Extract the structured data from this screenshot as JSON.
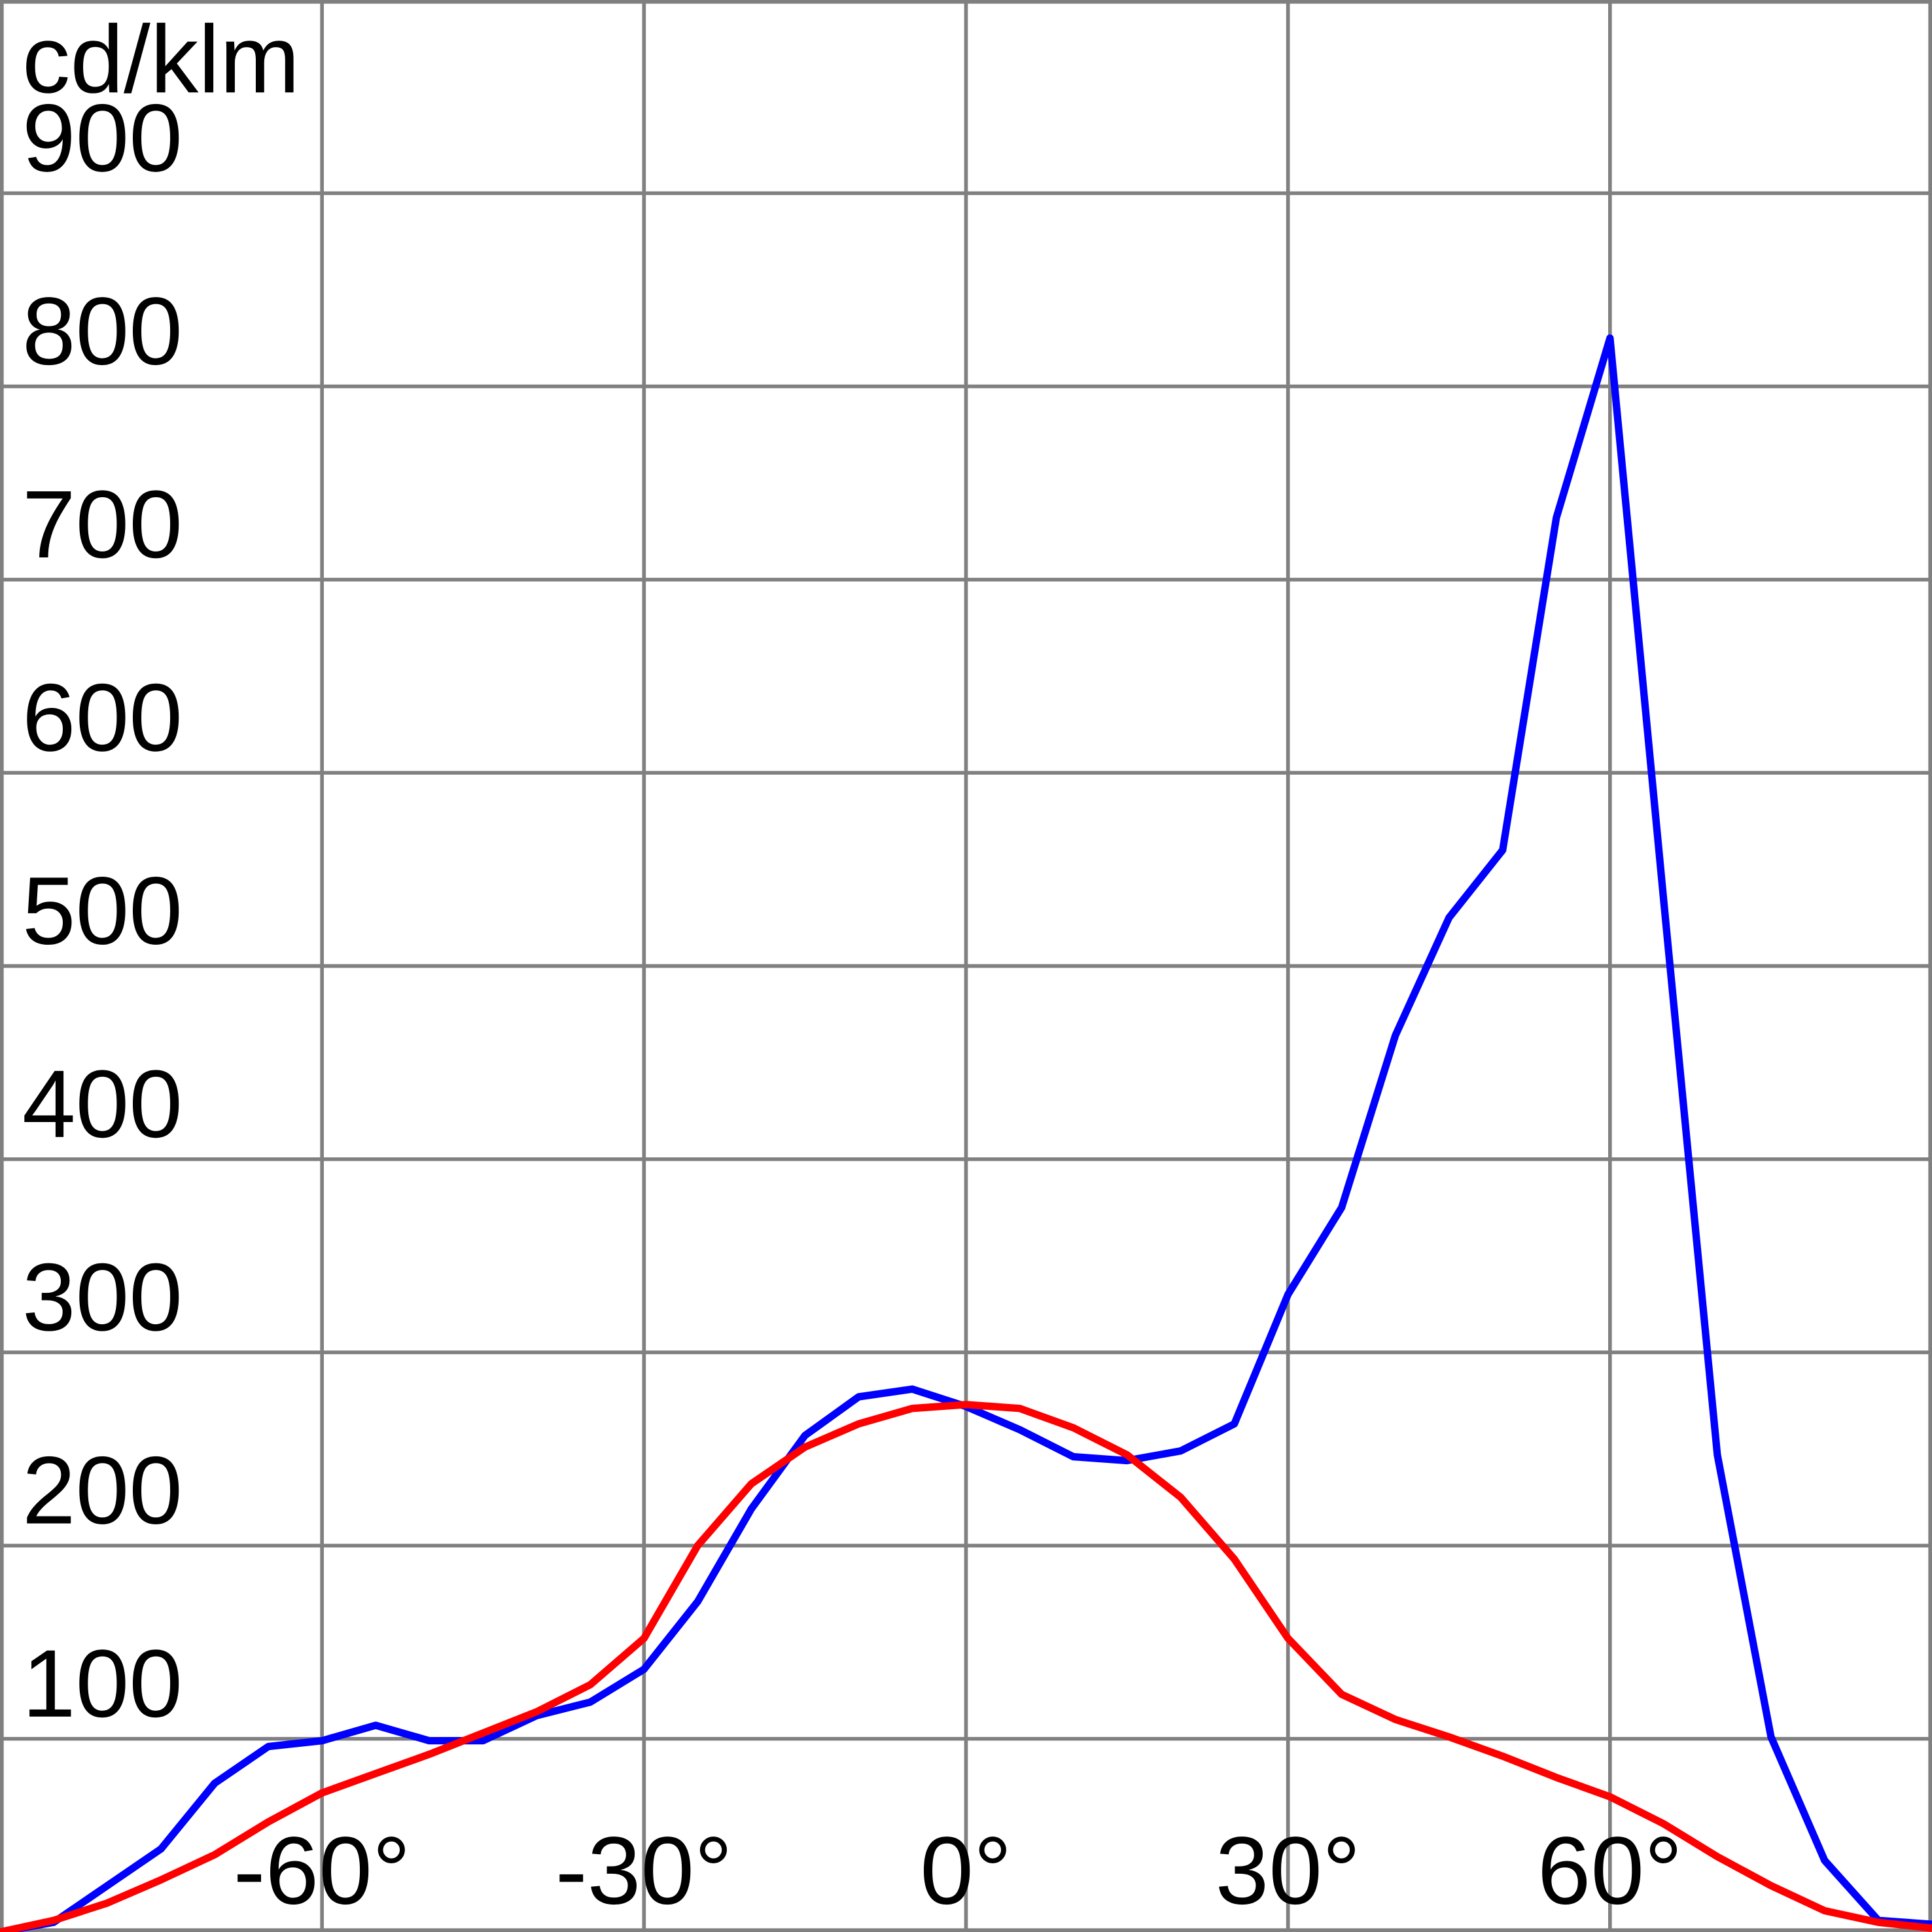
{
  "chart_data": {
    "type": "line",
    "y_label": "cd/klm",
    "x": [
      -90,
      -85,
      -80,
      -75,
      -70,
      -65,
      -60,
      -55,
      -50,
      -45,
      -40,
      -35,
      -30,
      -25,
      -20,
      -15,
      -10,
      -5,
      0,
      5,
      10,
      15,
      20,
      25,
      30,
      35,
      40,
      45,
      50,
      55,
      60,
      65,
      70,
      75,
      80,
      85,
      90
    ],
    "series": [
      {
        "color": "#0000ff",
        "values": [
          0,
          5,
          24,
          43,
          77,
          96,
          99,
          107,
          99,
          99,
          112,
          119,
          136,
          171,
          219,
          257,
          277,
          281,
          272,
          260,
          246,
          244,
          249,
          263,
          330,
          375,
          464,
          525,
          560,
          732,
          825,
          534,
          247,
          101,
          37,
          6,
          4
        ]
      },
      {
        "color": "#ff0000",
        "values": [
          0,
          6,
          15,
          27,
          40,
          57,
          72,
          82,
          92,
          103,
          114,
          128,
          152,
          200,
          232,
          251,
          263,
          271,
          273,
          271,
          261,
          247,
          225,
          193,
          152,
          123,
          110,
          101,
          91,
          80,
          70,
          56,
          39,
          24,
          11,
          5,
          2
        ]
      }
    ],
    "xlim": [
      -90,
      90
    ],
    "ylim": [
      0,
      1000
    ],
    "xticks": [
      {
        "value": -60,
        "label": "-60°"
      },
      {
        "value": -30,
        "label": "-30°"
      },
      {
        "value": 0,
        "label": "0°"
      },
      {
        "value": 30,
        "label": "30°"
      },
      {
        "value": 60,
        "label": "60°"
      }
    ],
    "yticks": [
      100,
      200,
      300,
      400,
      500,
      600,
      700,
      800,
      900
    ],
    "grid": true
  }
}
